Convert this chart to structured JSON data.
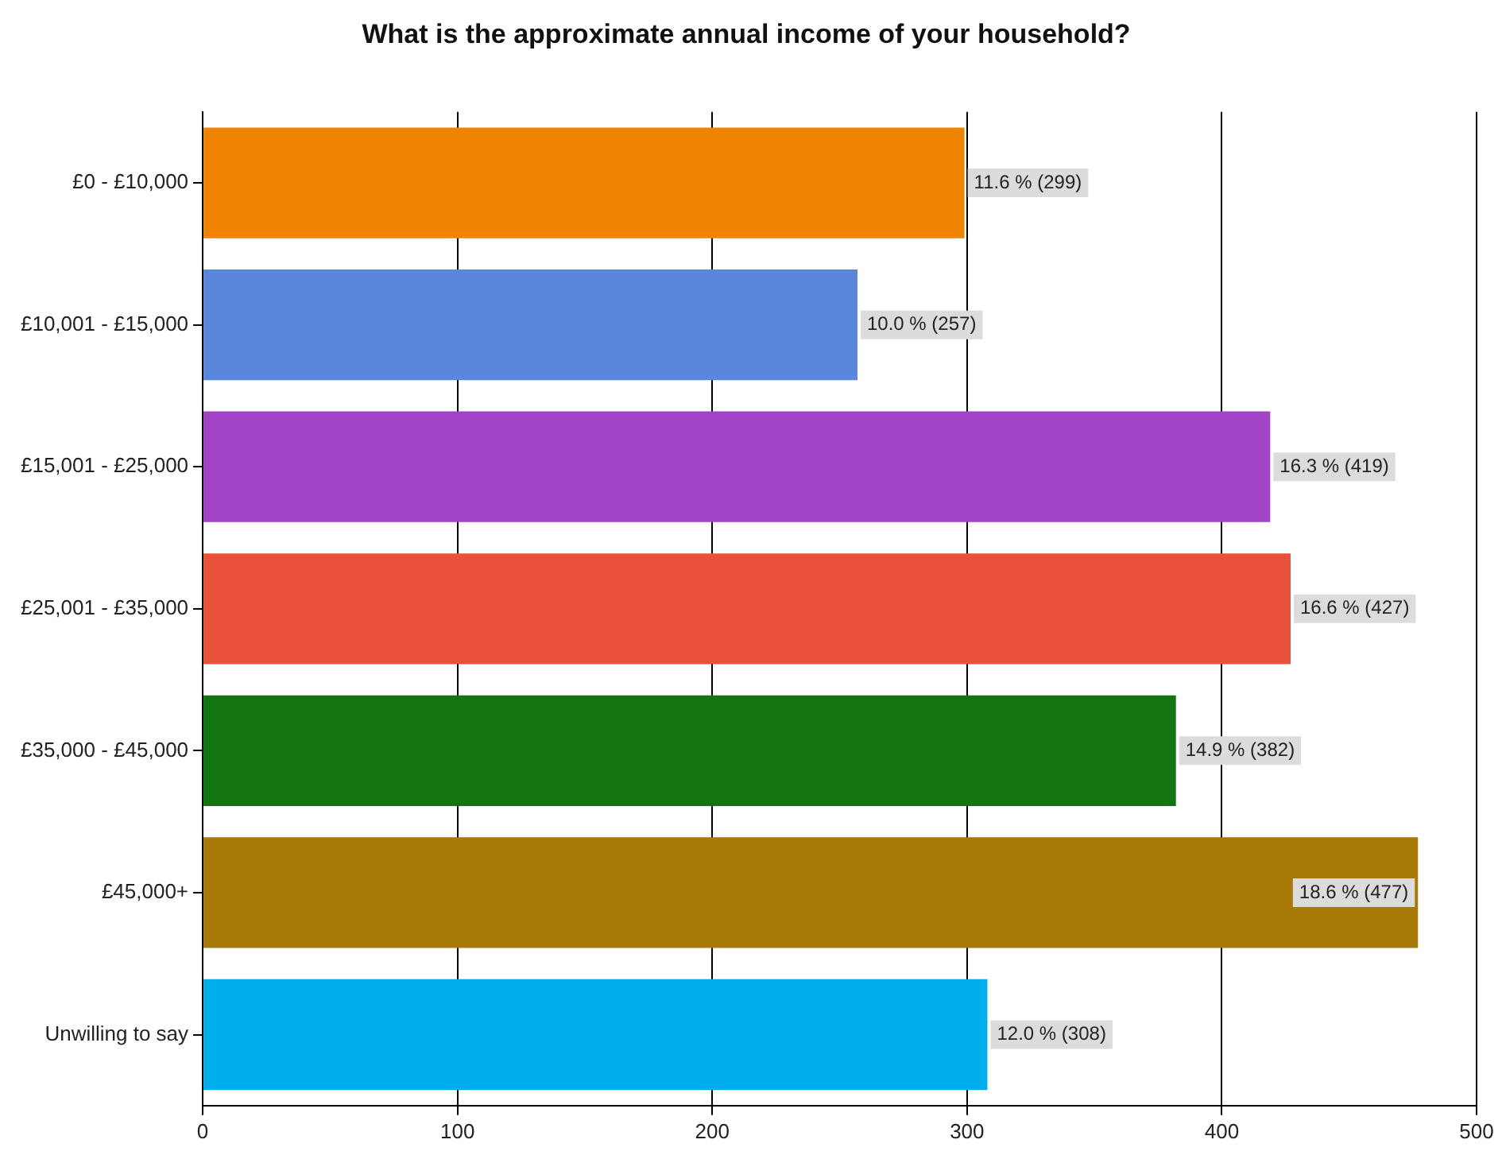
{
  "chart_data": {
    "type": "bar",
    "orientation": "horizontal",
    "title": "What is the approximate annual income of your household?",
    "categories": [
      "£0 - £10,000",
      "£10,001 - £15,000",
      "£15,001 - £25,000",
      "£25,001 - £35,000",
      "£35,000 - £45,000",
      "£45,000+",
      "Unwilling to say"
    ],
    "values": [
      299,
      257,
      419,
      427,
      382,
      477,
      308
    ],
    "colors": [
      "#f08400",
      "#5a86dc",
      "#a143c4",
      "#e9513a",
      "#127512",
      "#a77a08",
      "#00aeee"
    ],
    "value_labels": [
      "11.6 % (299)",
      "10.0 % (257)",
      "16.3 % (419)",
      "16.6 % (427)",
      "14.9 % (382)",
      "18.6 % (477)",
      "12.0 % (308)"
    ],
    "xlim": [
      0,
      500
    ],
    "xticks": [
      0,
      100,
      200,
      300,
      400,
      500
    ],
    "grid": "x",
    "legend": false
  }
}
